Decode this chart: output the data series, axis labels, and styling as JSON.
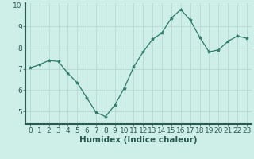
{
  "x": [
    0,
    1,
    2,
    3,
    4,
    5,
    6,
    7,
    8,
    9,
    10,
    11,
    12,
    13,
    14,
    15,
    16,
    17,
    18,
    19,
    20,
    21,
    22,
    23
  ],
  "y": [
    7.05,
    7.2,
    7.4,
    7.35,
    6.8,
    6.35,
    5.65,
    4.95,
    4.75,
    5.3,
    6.1,
    7.1,
    7.8,
    8.4,
    8.7,
    9.4,
    9.8,
    9.3,
    8.5,
    7.8,
    7.9,
    8.3,
    8.55,
    8.45
  ],
  "line_color": "#2d7a6a",
  "marker": "*",
  "marker_size": 3,
  "bg_color": "#ceeee8",
  "grid_color": "#b8d8d2",
  "axis_color": "#2a5a50",
  "tick_color": "#2a5a50",
  "xlabel": "Humidex (Indice chaleur)",
  "ylim": [
    4.4,
    10.1
  ],
  "xlim": [
    -0.5,
    23.5
  ],
  "yticks": [
    5,
    6,
    7,
    8,
    9,
    10
  ],
  "xticks": [
    0,
    1,
    2,
    3,
    4,
    5,
    6,
    7,
    8,
    9,
    10,
    11,
    12,
    13,
    14,
    15,
    16,
    17,
    18,
    19,
    20,
    21,
    22,
    23
  ],
  "xlabel_fontsize": 7.5,
  "tick_fontsize": 6.5
}
